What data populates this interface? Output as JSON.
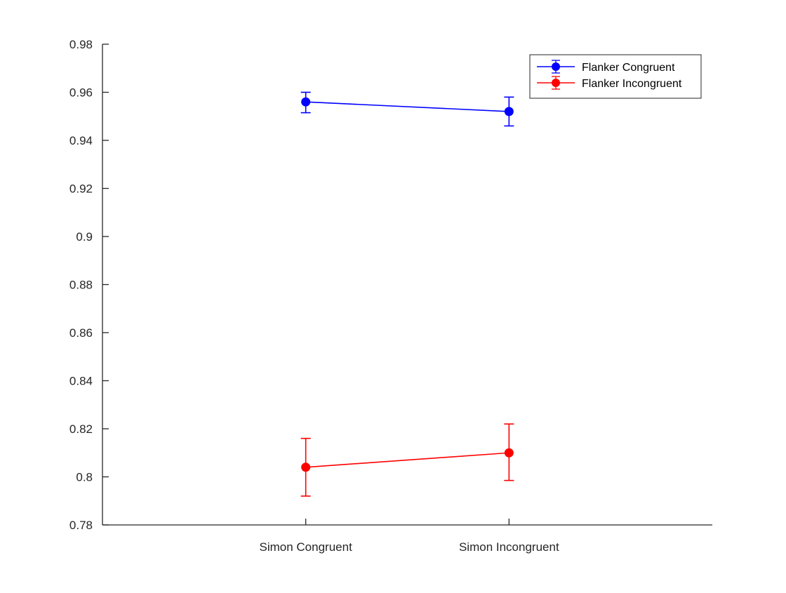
{
  "chart_data": {
    "type": "line",
    "categories": [
      "Simon Congruent",
      "Simon Incongruent"
    ],
    "series": [
      {
        "name": "Flanker Congruent",
        "color": "#0000ff",
        "values": [
          0.956,
          0.952
        ],
        "err_low": [
          0.9515,
          0.946
        ],
        "err_high": [
          0.96,
          0.958
        ]
      },
      {
        "name": "Flanker Incongruent",
        "color": "#ff0000",
        "values": [
          0.804,
          0.81
        ],
        "err_low": [
          0.792,
          0.7985
        ],
        "err_high": [
          0.816,
          0.822
        ]
      }
    ],
    "title": "",
    "xlabel": "",
    "ylabel": "",
    "ylim": [
      0.78,
      0.98
    ],
    "yticks": [
      "0.78",
      "0.8",
      "0.82",
      "0.84",
      "0.86",
      "0.88",
      "0.9",
      "0.92",
      "0.94",
      "0.96",
      "0.98"
    ],
    "grid": false,
    "legend_position": "top-right",
    "axis_color": "#262626"
  }
}
